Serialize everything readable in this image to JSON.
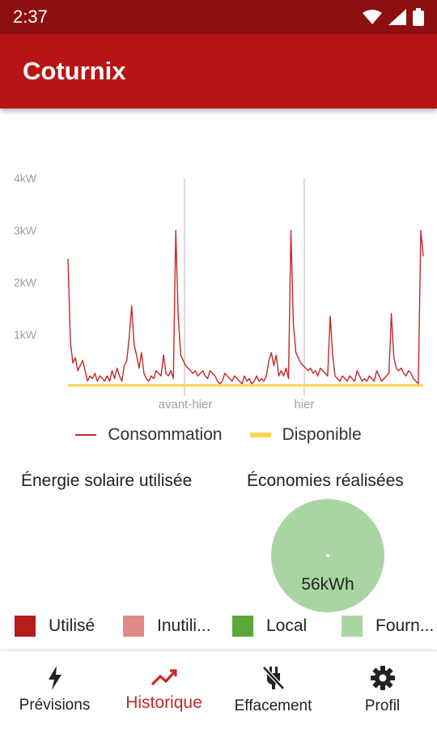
{
  "status_bar": {
    "time": "2:37",
    "icons": [
      "wifi-icon",
      "signal-icon",
      "battery-icon"
    ]
  },
  "app_bar": {
    "title": "Coturnix"
  },
  "chart_data": {
    "type": "line",
    "x_labels": [
      "avant-hier",
      "hier"
    ],
    "y_ticks": [
      "4kW",
      "3kW",
      "2kW",
      "1kW"
    ],
    "ylim": [
      0,
      4
    ],
    "series": [
      {
        "name": "Consommation",
        "color": "#c62828",
        "values": [
          2.45,
          0.85,
          0.45,
          0.55,
          0.3,
          0.4,
          0.5,
          0.3,
          0.1,
          0.2,
          0.15,
          0.25,
          0.1,
          0.2,
          0.15,
          0.1,
          0.2,
          0.1,
          0.3,
          0.15,
          0.35,
          0.2,
          0.1,
          0.4,
          0.5,
          0.95,
          1.55,
          0.8,
          0.6,
          0.35,
          0.65,
          0.25,
          0.15,
          0.1,
          0.2,
          0.15,
          0.3,
          0.25,
          0.2,
          0.6,
          0.25,
          0.2,
          0.3,
          0.15,
          3.0,
          1.35,
          0.6,
          0.5,
          0.4,
          0.35,
          0.3,
          0.25,
          0.3,
          0.2,
          0.25,
          0.3,
          0.2,
          0.15,
          0.3,
          0.25,
          0.2,
          0.1,
          0.05,
          0.1,
          0.25,
          0.2,
          0.15,
          0.1,
          0.2,
          0.15,
          0.1,
          0.05,
          0.2,
          0.1,
          0.15,
          0.05,
          0.1,
          0.2,
          0.1,
          0.15,
          0.1,
          0.2,
          0.5,
          0.65,
          0.4,
          0.6,
          0.2,
          0.3,
          0.2,
          0.35,
          0.15,
          3.0,
          1.2,
          0.65,
          0.55,
          0.45,
          0.4,
          0.35,
          0.3,
          0.35,
          0.25,
          0.3,
          0.2,
          0.35,
          0.3,
          0.25,
          0.2,
          1.35,
          0.6,
          0.2,
          0.15,
          0.1,
          0.2,
          0.15,
          0.1,
          0.2,
          0.15,
          0.1,
          0.3,
          0.2,
          0.1,
          0.15,
          0.1,
          0.2,
          0.15,
          0.1,
          0.3,
          0.2,
          0.1,
          0.15,
          0.2,
          0.25,
          1.4,
          0.55,
          0.35,
          0.3,
          0.35,
          0.25,
          0.2,
          0.3,
          0.25,
          0.15,
          0.1,
          0.05,
          3.0,
          2.5
        ]
      },
      {
        "name": "Disponible",
        "color": "#ffd54f",
        "values": [
          0.02
        ]
      }
    ],
    "grid": false
  },
  "legend": {
    "consommation": "Consommation",
    "disponible": "Disponible"
  },
  "stats": {
    "energie_title": "Énergie solaire utilisée",
    "economies_title": "Économies réalisées",
    "economies_value": "56kWh",
    "pie_color": "#a8d5a2"
  },
  "legend2": [
    {
      "label": "Utilisé",
      "color": "#b71c1c"
    },
    {
      "label": "Inutili...",
      "color": "#e08a8a"
    },
    {
      "label": "Local",
      "color": "#5aa838"
    },
    {
      "label": "Fourn...",
      "color": "#a8d5a2"
    }
  ],
  "nav": [
    {
      "label": "Prévisions",
      "icon": "lightning-icon",
      "active": false
    },
    {
      "label": "Historique",
      "icon": "trending-icon",
      "active": true
    },
    {
      "label": "Effacement",
      "icon": "power-off-icon",
      "active": false
    },
    {
      "label": "Profil",
      "icon": "gear-icon",
      "active": false
    }
  ]
}
